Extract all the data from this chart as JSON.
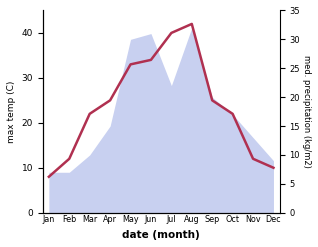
{
  "months": [
    "Jan",
    "Feb",
    "Mar",
    "Apr",
    "May",
    "Jun",
    "Jul",
    "Aug",
    "Sep",
    "Oct",
    "Nov",
    "Dec"
  ],
  "temperature": [
    8,
    12,
    22,
    25,
    33,
    34,
    40,
    42,
    25,
    22,
    12,
    10
  ],
  "precipitation": [
    7,
    7,
    10,
    15,
    30,
    31,
    22,
    32,
    20,
    17,
    13,
    9
  ],
  "temp_color": "#b03050",
  "precip_fill_color": "#c8d0f0",
  "xlabel": "date (month)",
  "ylabel_left": "max temp (C)",
  "ylabel_right": "med. precipitation (kg/m2)",
  "ylim_left": [
    0,
    45
  ],
  "ylim_right": [
    0,
    35
  ],
  "yticks_left": [
    0,
    10,
    20,
    30,
    40
  ],
  "yticks_right": [
    0,
    5,
    10,
    15,
    20,
    25,
    30,
    35
  ],
  "background_color": "#ffffff"
}
